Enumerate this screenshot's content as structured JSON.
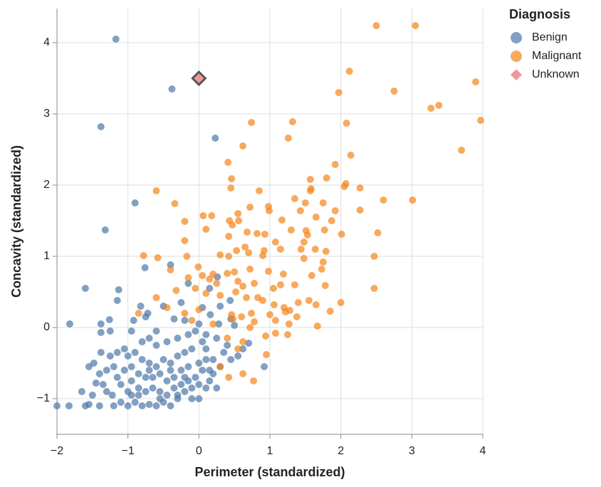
{
  "chart_data": {
    "type": "scatter",
    "x_label": "Perimeter (standardized)",
    "y_label": "Concavity (standardized)",
    "legend_title": "Diagnosis",
    "xlim": [
      -2,
      4
    ],
    "ylim": [
      -1.5,
      4.48
    ],
    "xticks": [
      {
        "value": -2,
        "label": "−2"
      },
      {
        "value": -1,
        "label": "−1"
      },
      0,
      1,
      2,
      3,
      4
    ],
    "yticks": [
      {
        "value": -1,
        "label": "−1"
      },
      0,
      1,
      2,
      3,
      4
    ],
    "grid": true,
    "series": [
      {
        "name": "Benign",
        "color": "#4c78a8",
        "marker": "circle",
        "x": [
          -1.17,
          -0.38,
          -1.38,
          0.23,
          -0.9,
          -1.32,
          -1.6,
          -1.13,
          -1.15,
          -0.76,
          -0.4,
          -0.15,
          0.15,
          0.26,
          0.44,
          -1.82,
          -1.38,
          -1.26,
          -1.25,
          -1.38,
          0.92,
          -2.0,
          -1.83,
          -1.6,
          -1.55,
          -1.65,
          -1.55,
          -1.48,
          -1.38,
          -0.82,
          -0.72,
          -0.92,
          -0.75,
          -0.5,
          -0.25,
          0.05,
          0.3,
          0.16,
          0.28,
          0.45,
          0.5,
          0.62,
          0.7,
          0.55,
          0.35,
          0.1,
          -0.05,
          0.0,
          -0.2,
          -0.35,
          -0.6,
          -0.7,
          -0.95,
          -1.05,
          -1.15,
          -1.25,
          -1.3,
          -1.4,
          -1.45,
          -1.35,
          -1.3,
          -1.22,
          -1.2,
          -1.1,
          -1.0,
          -0.9,
          -0.8,
          -0.7,
          -0.6,
          -0.5,
          -0.4,
          -0.3,
          -0.1,
          -0.2,
          0.0,
          0.1,
          0.15,
          0.2,
          -1.1,
          -1.0,
          -0.95,
          -0.85,
          -0.75,
          -0.65,
          -0.55,
          -0.45,
          -0.35,
          -0.25,
          -0.15,
          -0.05,
          0.05,
          -1.05,
          -0.95,
          -0.85,
          -0.75,
          -0.65,
          -0.55,
          -0.45,
          -0.35,
          -0.25,
          -0.15,
          0.0,
          -1.0,
          -0.9,
          -0.8,
          -0.7,
          -0.6,
          -0.5,
          -0.4,
          -0.3,
          -0.2,
          -0.1,
          0.1,
          0.2,
          0.3,
          0.25,
          0.15,
          -0.8,
          -0.6,
          -0.45,
          -0.3,
          -0.15,
          0.05,
          0.25,
          0.4,
          0.45,
          -0.55,
          -0.85,
          -1.15,
          -0.95,
          -0.7,
          -0.4,
          -0.2,
          0.1,
          -1.5,
          -1.4,
          -1.2,
          -0.3,
          -0.1,
          0.0
        ],
        "values": [
          4.05,
          3.35,
          2.82,
          2.66,
          1.75,
          1.37,
          0.55,
          0.53,
          0.38,
          0.84,
          0.88,
          0.62,
          0.55,
          0.71,
          0.38,
          0.05,
          0.05,
          0.11,
          -0.05,
          -0.07,
          -0.55,
          -1.1,
          -1.1,
          -1.1,
          -1.08,
          -0.9,
          -0.55,
          -0.5,
          -0.35,
          0.3,
          0.2,
          0.1,
          0.15,
          0.3,
          0.35,
          0.28,
          0.3,
          0.18,
          0.05,
          0.12,
          0.03,
          -0.3,
          -0.22,
          -0.4,
          -0.35,
          -0.1,
          -0.05,
          0.05,
          0.1,
          0.12,
          -0.05,
          -0.15,
          -0.05,
          -0.3,
          -0.35,
          -0.4,
          -0.6,
          -0.65,
          -0.78,
          -0.8,
          -0.9,
          -0.95,
          -1.1,
          -1.05,
          -1.1,
          -1.05,
          -1.1,
          -1.08,
          -1.1,
          -1.05,
          -1.1,
          -1.0,
          -1.0,
          -0.9,
          -1.0,
          -0.85,
          -0.75,
          -0.65,
          -0.8,
          -0.9,
          -0.75,
          -0.85,
          -0.9,
          -0.85,
          -0.9,
          -0.95,
          -0.85,
          -0.8,
          -0.75,
          -0.7,
          -0.6,
          -0.6,
          -0.55,
          -0.65,
          -0.7,
          -0.7,
          -0.65,
          -0.75,
          -0.7,
          -0.6,
          -0.55,
          -0.5,
          -0.4,
          -0.35,
          -0.45,
          -0.5,
          -0.55,
          -0.45,
          -0.5,
          -0.4,
          -0.35,
          -0.3,
          -0.3,
          -0.45,
          -0.55,
          -0.85,
          -0.6,
          -0.2,
          -0.25,
          -0.2,
          -0.15,
          -0.1,
          -0.2,
          -0.15,
          -0.25,
          -0.45,
          -1.0,
          -0.95,
          -0.7,
          -0.95,
          -0.6,
          -0.6,
          -0.7,
          -0.45,
          -0.95,
          -1.1,
          -0.55,
          -0.95,
          -0.85,
          -0.8
        ]
      },
      {
        "name": "Malignant",
        "color": "#f58518",
        "marker": "circle",
        "x": [
          2.5,
          3.05,
          2.12,
          1.97,
          2.75,
          3.38,
          3.27,
          3.9,
          3.97,
          3.7,
          0.74,
          1.32,
          1.26,
          2.08,
          0.62,
          0.41,
          2.14,
          1.92,
          0.46,
          0.45,
          -0.6,
          0.85,
          1.57,
          1.58,
          1.57,
          1.8,
          2.07,
          2.05,
          2.27,
          2.6,
          3.01,
          -0.34,
          1.35,
          1.5,
          1.75,
          0.72,
          0.98,
          0.99,
          1.92,
          2.27,
          0.06,
          0.18,
          0.55,
          0.43,
          0.47,
          0.56,
          -0.2,
          1.17,
          1.43,
          1.65,
          1.87,
          0.1,
          0.42,
          0.68,
          0.82,
          0.93,
          1.3,
          1.51,
          1.77,
          2.01,
          2.52,
          -0.2,
          0.65,
          0.92,
          1.08,
          1.48,
          1.53,
          -0.78,
          -0.58,
          -0.17,
          0.3,
          0.42,
          0.53,
          0.7,
          0.9,
          1.15,
          1.44,
          1.64,
          1.79,
          2.47,
          -0.4,
          -0.01,
          0.05,
          0.2,
          0.4,
          0.5,
          0.72,
          0.98,
          1.19,
          1.48,
          1.73,
          1.75,
          -0.15,
          0.15,
          0.25,
          0.55,
          0.62,
          0.78,
          1.05,
          1.15,
          1.35,
          1.59,
          1.78,
          2.47,
          -0.6,
          -0.32,
          -0.05,
          0.1,
          0.3,
          0.52,
          0.67,
          0.83,
          0.9,
          1.06,
          1.2,
          1.4,
          1.55,
          1.65,
          1.85,
          2.0,
          -0.85,
          -0.45,
          -0.2,
          0.0,
          0.46,
          0.6,
          0.74,
          1.0,
          1.22,
          1.28,
          1.38,
          -0.1,
          0.2,
          0.48,
          0.78,
          0.72,
          1.08,
          1.27,
          1.67,
          0.4,
          0.62,
          0.94,
          1.08,
          1.25,
          0.95,
          0.3,
          0.42,
          0.62,
          0.77,
          0.55
        ],
        "values": [
          4.24,
          4.24,
          3.6,
          3.3,
          3.32,
          3.12,
          3.08,
          3.45,
          2.91,
          2.49,
          2.88,
          2.89,
          2.66,
          2.87,
          2.55,
          2.32,
          2.42,
          2.29,
          2.09,
          1.96,
          1.92,
          1.92,
          2.08,
          1.95,
          1.92,
          2.1,
          2.02,
          1.98,
          1.96,
          1.79,
          1.79,
          1.74,
          1.81,
          1.75,
          1.75,
          1.69,
          1.7,
          1.64,
          1.64,
          1.65,
          1.57,
          1.57,
          1.6,
          1.5,
          1.44,
          1.5,
          1.49,
          1.51,
          1.64,
          1.55,
          1.5,
          1.38,
          1.28,
          1.34,
          1.32,
          1.31,
          1.37,
          1.36,
          1.37,
          1.31,
          1.33,
          1.22,
          1.13,
          1.08,
          1.2,
          1.2,
          1.3,
          1.01,
          0.98,
          1.0,
          1.02,
          1.0,
          1.08,
          1.05,
          1.01,
          1.1,
          1.1,
          1.1,
          1.07,
          1.0,
          0.81,
          0.85,
          0.73,
          0.75,
          0.76,
          0.78,
          0.82,
          0.79,
          0.75,
          0.97,
          0.82,
          0.92,
          0.7,
          0.68,
          0.62,
          0.65,
          0.58,
          0.62,
          0.55,
          0.6,
          0.6,
          0.73,
          0.59,
          0.55,
          0.42,
          0.52,
          0.55,
          0.48,
          0.45,
          0.5,
          0.42,
          0.42,
          0.38,
          0.32,
          0.28,
          0.35,
          0.38,
          0.32,
          0.23,
          0.35,
          0.2,
          0.28,
          0.2,
          0.25,
          0.18,
          0.15,
          0.2,
          0.18,
          0.22,
          0.24,
          0.15,
          0.1,
          0.05,
          0.12,
          0.08,
          0.0,
          0.1,
          0.05,
          0.02,
          -0.15,
          -0.2,
          -0.12,
          -0.08,
          -0.1,
          -0.38,
          -0.55,
          -0.7,
          -0.65,
          -0.75,
          -0.3
        ]
      },
      {
        "name": "Unknown",
        "color": "#e45756",
        "marker": "diamond",
        "x": [
          0
        ],
        "values": [
          3.5
        ]
      }
    ]
  }
}
